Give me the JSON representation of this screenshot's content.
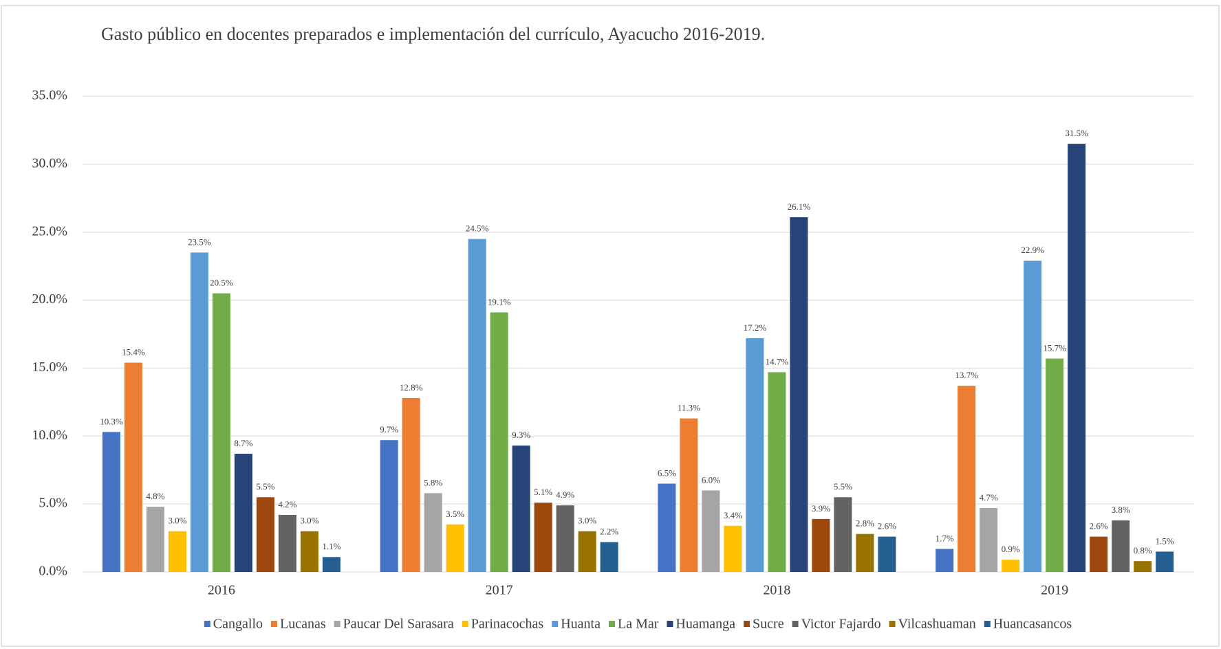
{
  "chart_data": {
    "type": "bar",
    "title": "Gasto público en docentes preparados e implementación del currículo, Ayacucho 2016-2019.",
    "categories": [
      "2016",
      "2017",
      "2018",
      "2019"
    ],
    "ylim": [
      0,
      35
    ],
    "yticks": [
      {
        "value": 0,
        "label": "0.0%"
      },
      {
        "value": 5,
        "label": "5.0%"
      },
      {
        "value": 10,
        "label": "10.0%"
      },
      {
        "value": 15,
        "label": "15.0%"
      },
      {
        "value": 20,
        "label": "20.0%"
      },
      {
        "value": 25,
        "label": "25.0%"
      },
      {
        "value": 30,
        "label": "30.0%"
      },
      {
        "value": 35,
        "label": "35.0%"
      }
    ],
    "grid": true,
    "legend": "bottom",
    "series": [
      {
        "name": "Cangallo",
        "color": "#4472c4",
        "values": [
          10.3,
          9.7,
          6.5,
          1.7
        ],
        "value_labels": [
          "10.3%",
          "9.7%",
          "6.5%",
          "1.7%"
        ]
      },
      {
        "name": "Lucanas",
        "color": "#ed7d31",
        "values": [
          15.4,
          12.8,
          11.3,
          13.7
        ],
        "value_labels": [
          "15.4%",
          "12.8%",
          "11.3%",
          "13.7%"
        ]
      },
      {
        "name": "Paucar Del Sarasara",
        "color": "#a5a5a5",
        "values": [
          4.8,
          5.8,
          6.0,
          4.7
        ],
        "value_labels": [
          "4.8%",
          "5.8%",
          "6.0%",
          "4.7%"
        ]
      },
      {
        "name": "Parinacochas",
        "color": "#ffc000",
        "values": [
          3.0,
          3.5,
          3.4,
          0.9
        ],
        "value_labels": [
          "3.0%",
          "3.5%",
          "3.4%",
          "0.9%"
        ]
      },
      {
        "name": "Huanta",
        "color": "#5b9bd5",
        "values": [
          23.5,
          24.5,
          17.2,
          22.9
        ],
        "value_labels": [
          "23.5%",
          "24.5%",
          "17.2%",
          "22.9%"
        ]
      },
      {
        "name": "La Mar",
        "color": "#70ad47",
        "values": [
          20.5,
          19.1,
          14.7,
          15.7
        ],
        "value_labels": [
          "20.5%",
          "19.1%",
          "14.7%",
          "15.7%"
        ]
      },
      {
        "name": "Huamanga",
        "color": "#264478",
        "values": [
          8.7,
          9.3,
          26.1,
          31.5
        ],
        "value_labels": [
          "8.7%",
          "9.3%",
          "26.1%",
          "31.5%"
        ]
      },
      {
        "name": "Sucre",
        "color": "#9e480e",
        "values": [
          5.5,
          5.1,
          3.9,
          2.6
        ],
        "value_labels": [
          "5.5%",
          "5.1%",
          "3.9%",
          "2.6%"
        ]
      },
      {
        "name": "Victor Fajardo",
        "color": "#636363",
        "values": [
          4.2,
          4.9,
          5.5,
          3.8
        ],
        "value_labels": [
          "4.2%",
          "4.9%",
          "5.5%",
          "3.8%"
        ]
      },
      {
        "name": "Vilcashuaman",
        "color": "#997300",
        "values": [
          3.0,
          3.0,
          2.8,
          0.8
        ],
        "value_labels": [
          "3.0%",
          "3.0%",
          "2.8%",
          "0.8%"
        ]
      },
      {
        "name": "Huancasancos",
        "color": "#255e91",
        "values": [
          1.1,
          2.2,
          2.6,
          1.5
        ],
        "value_labels": [
          "1.1%",
          "2.2%",
          "2.6%",
          "1.5%"
        ]
      }
    ]
  }
}
